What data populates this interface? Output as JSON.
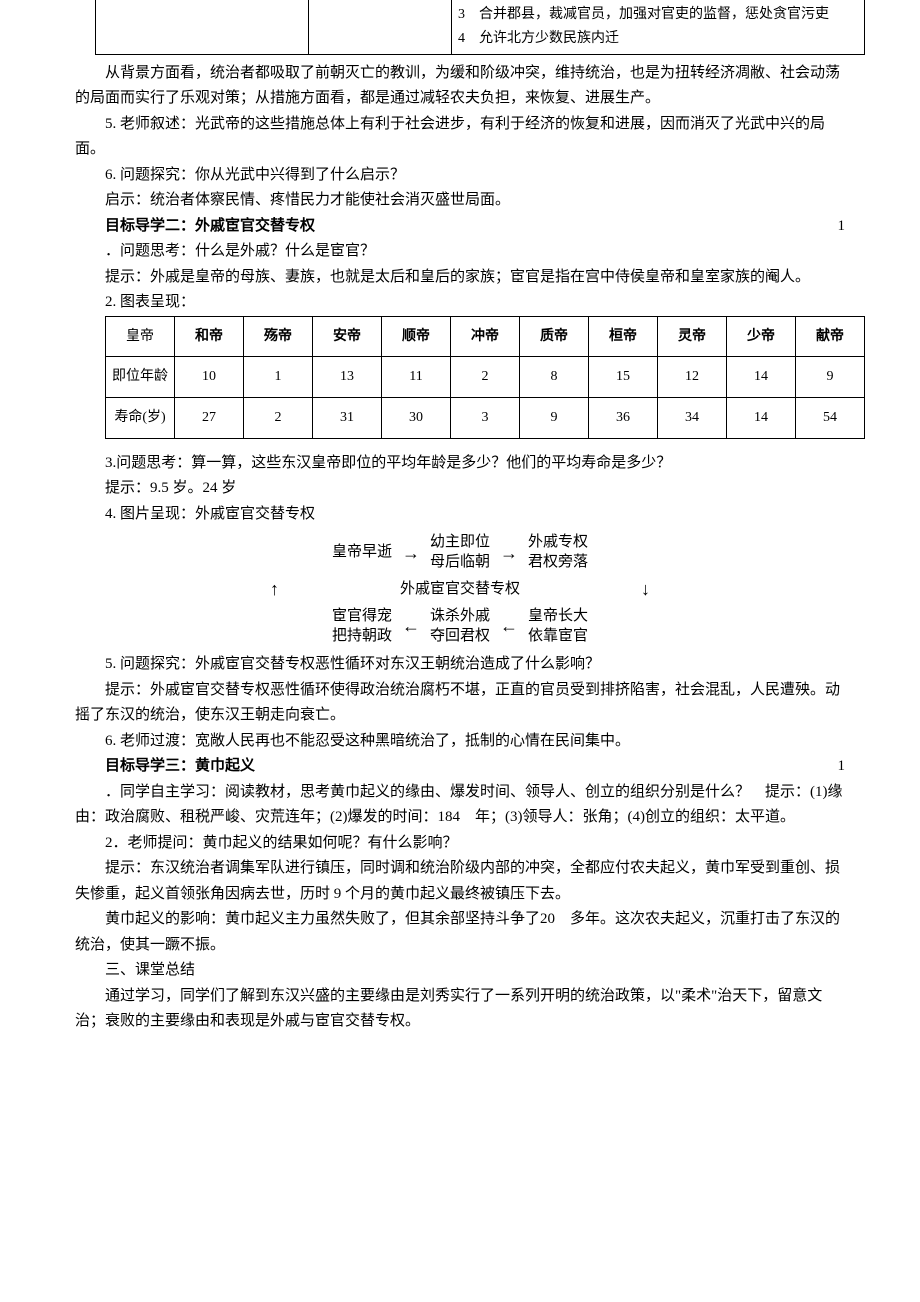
{
  "partial_table": {
    "rows": [
      "3　合并郡县，裁减官员，加强对官吏的监督，惩处贪官污吏",
      "4　允许北方少数民族内迁"
    ]
  },
  "paragraphs": {
    "p1": "从背景方面看，统治者都吸取了前朝灭亡的教训，为缓和阶级冲突，维持统治，也是为扭转经济凋敝、社会动荡的局面而实行了乐观对策；从措施方面看，都是通过减轻农夫负担，来恢复、进展生产。",
    "p2": "5. 老师叙述：光武帝的这些措施总体上有利于社会进步，有利于经济的恢复和进展，因而消灭了光武中兴的局面。",
    "p3": "6. 问题探究：你从光武中兴得到了什么启示？",
    "p4": "启示：统治者体察民情、疼惜民力才能使社会消灭盛世局面。",
    "h2": "目标导学二：外戚宦官交替专权",
    "h2_num": "1",
    "p5": "．问题思考：什么是外戚？什么是宦官？",
    "p6": "提示：外戚是皇帝的母族、妻族，也就是太后和皇后的家族；宦官是指在宫中侍侯皇帝和皇室家族的阉人。",
    "p7": "2. 图表呈现：",
    "p8": "3.问题思考：算一算，这些东汉皇帝即位的平均年龄是多少？他们的平均寿命是多少？",
    "p9": "提示：9.5 岁。24 岁",
    "p10": "4. 图片呈现：外戚宦官交替专权",
    "p11": "5. 问题探究：外戚宦官交替专权恶性循环对东汉王朝统治造成了什么影响？",
    "p12": "提示：外戚宦官交替专权恶性循环使得政治统治腐朽不堪，正直的官员受到排挤陷害，社会混乱，人民遭殃。动摇了东汉的统治，使东汉王朝走向衰亡。",
    "p13": "6. 老师过渡：宽敞人民再也不能忍受这种黑暗统治了，抵制的心情在民间集中。",
    "h3": "目标导学三：黄巾起义",
    "h3_num": "1",
    "p14": "．同学自主学习：阅读教材，思考黄巾起义的缘由、爆发时间、领导人、创立的组织分别是什么？　提示：(1)缘由：政治腐败、租税严峻、灾荒连年；(2)爆发的时间：184　年；(3)领导人：张角；(4)创立的组织：太平道。",
    "p15": "2．老师提问：黄巾起义的结果如何呢？有什么影响？",
    "p16": "提示：东汉统治者调集军队进行镇压，同时调和统治阶级内部的冲突，全都应付农夫起义，黄巾军受到重创、损失惨重，起义首领张角因病去世，历时 9 个月的黄巾起义最终被镇压下去。",
    "p17": "黄巾起义的影响：黄巾起义主力虽然失败了，但其余部坚持斗争了20　多年。这次农夫起义，沉重打击了东汉的统治，使其一蹶不振。",
    "p18": "三、课堂总结",
    "p19": "通过学习，同学们了解到东汉兴盛的主要缘由是刘秀实行了一系列开明的统治政策，以\"柔术\"治天下，留意文治；衰败的主要缘由和表现是外戚与宦官交替专权。"
  },
  "emperors": {
    "header": [
      "皇帝",
      "和帝",
      "殇帝",
      "安帝",
      "顺帝",
      "冲帝",
      "质帝",
      "桓帝",
      "灵帝",
      "少帝",
      "献帝"
    ],
    "row1_label": "即位年龄",
    "row1": [
      "10",
      "1",
      "13",
      "11",
      "2",
      "8",
      "15",
      "12",
      "14",
      "9"
    ],
    "row2_label": "寿命(岁)",
    "row2": [
      "27",
      "2",
      "31",
      "30",
      "3",
      "9",
      "36",
      "34",
      "14",
      "54"
    ]
  },
  "diagram": {
    "r1c1a": "皇帝早逝",
    "r1c2a": "幼主即位",
    "r1c2b": "母后临朝",
    "r1c3a": "外戚专权",
    "r1c3b": "君权旁落",
    "mid": "外戚宦官交替专权",
    "r3c1a": "宦官得宠",
    "r3c1b": "把持朝政",
    "r3c2a": "诛杀外戚",
    "r3c2b": "夺回君权",
    "r3c3a": "皇帝长大",
    "r3c3b": "依靠宦官"
  },
  "colors": {
    "text": "#000000",
    "background": "#ffffff",
    "border": "#000000"
  }
}
